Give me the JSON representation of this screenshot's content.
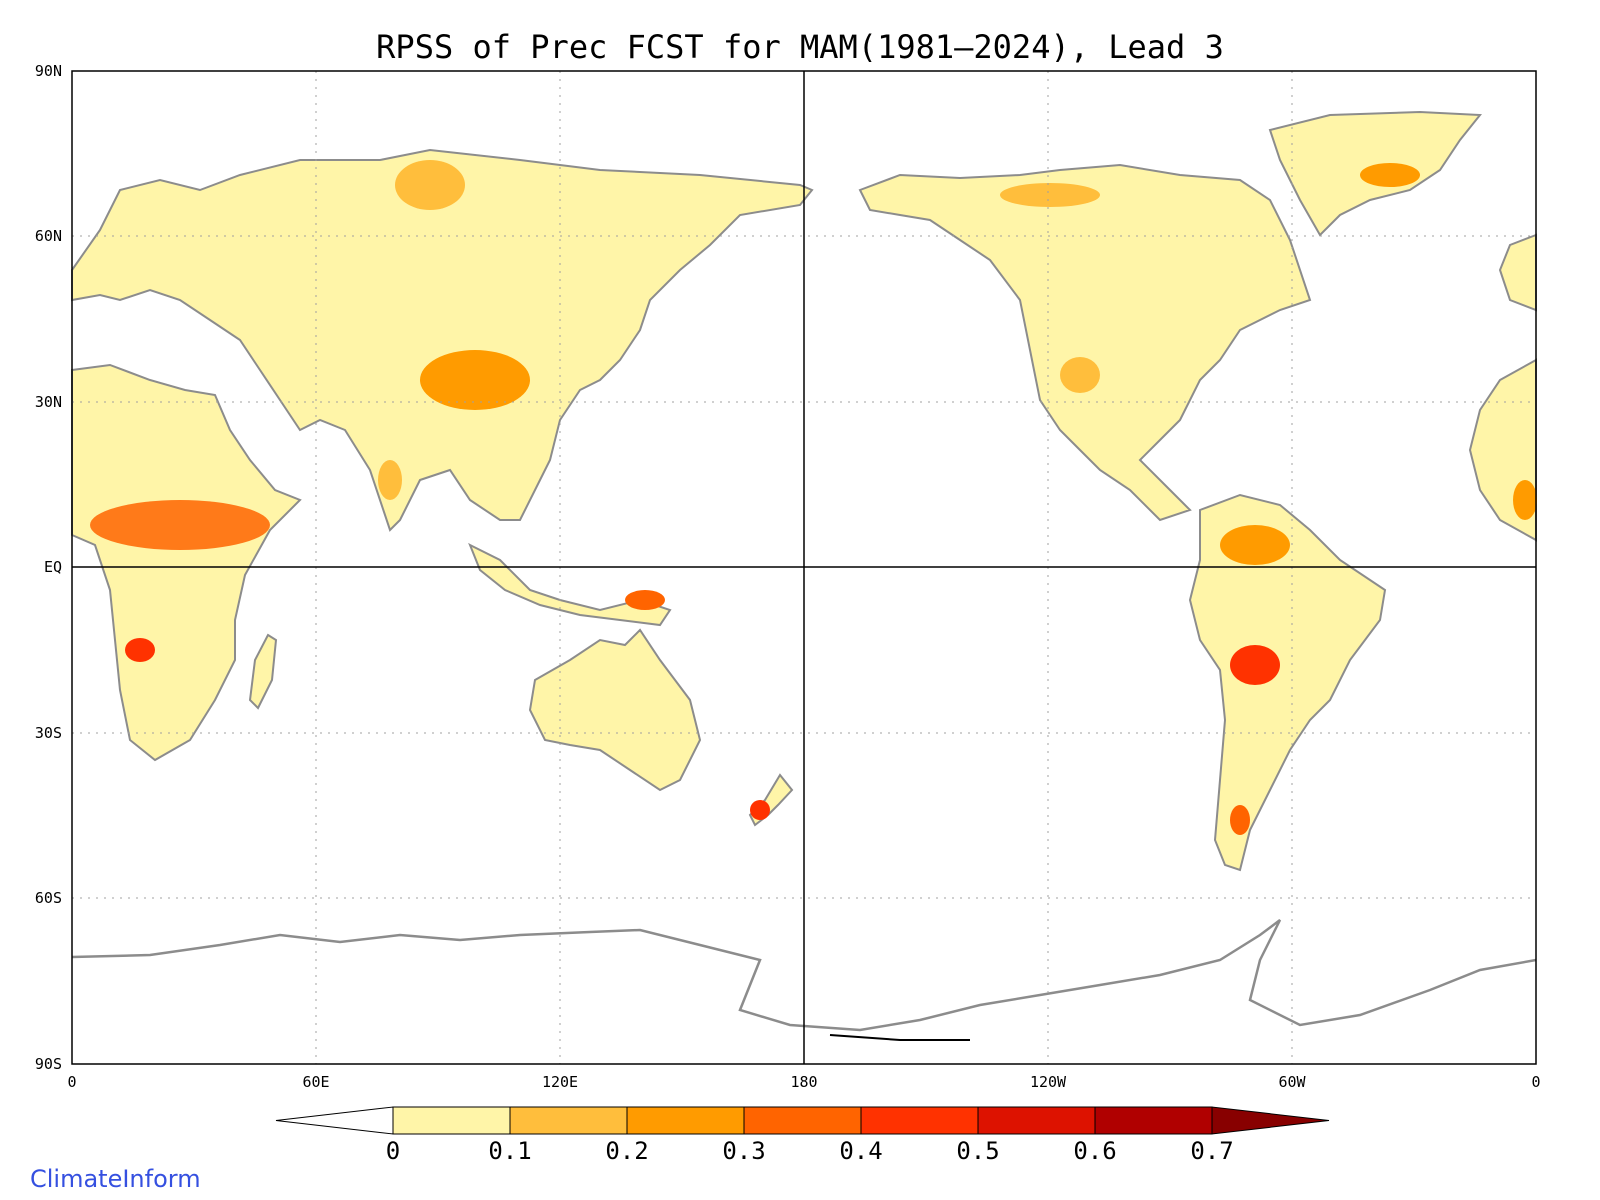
{
  "title": "RPSS of Prec FCST for MAM(1981—2024), Lead 3",
  "credit": "ClimateInform",
  "axes": {
    "lat_labels": [
      "90N",
      "60N",
      "30N",
      "EQ",
      "30S",
      "60S",
      "90S"
    ],
    "lon_labels": [
      "0",
      "60E",
      "120E",
      "180",
      "120W",
      "60W",
      "0"
    ]
  },
  "colorbar": {
    "ticks": [
      "0",
      "0.1",
      "0.2",
      "0.3",
      "0.4",
      "0.5",
      "0.6",
      "0.7"
    ],
    "colors": [
      "#ffffff",
      "#fff5a8",
      "#ffbe3c",
      "#ff9b00",
      "#ff6400",
      "#ff3200",
      "#dd1200",
      "#b00000",
      "#880000"
    ]
  },
  "colors": {
    "coast": "#8c8c8c",
    "lakes": "#000000",
    "grid": "#a0a0a0"
  }
}
